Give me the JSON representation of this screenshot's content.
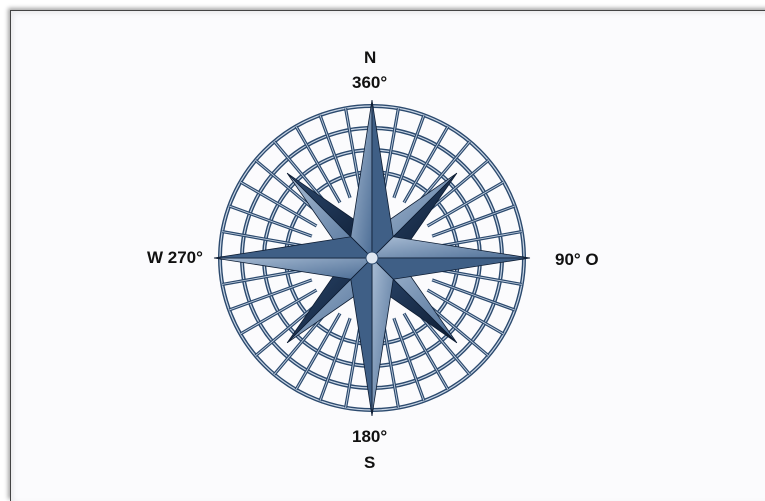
{
  "labels": {
    "north_letter": "N",
    "north_degree": "360°",
    "east": "90° O",
    "south_degree": "180°",
    "south_letter": "S",
    "west": "W 270°"
  },
  "colors": {
    "ring_stroke": "#2c4a6e",
    "ring_highlight": "#c9d6e6",
    "star_light": "#7d97b8",
    "star_mid": "#3f5f86",
    "star_dark": "#10223d",
    "text": "#111111"
  }
}
